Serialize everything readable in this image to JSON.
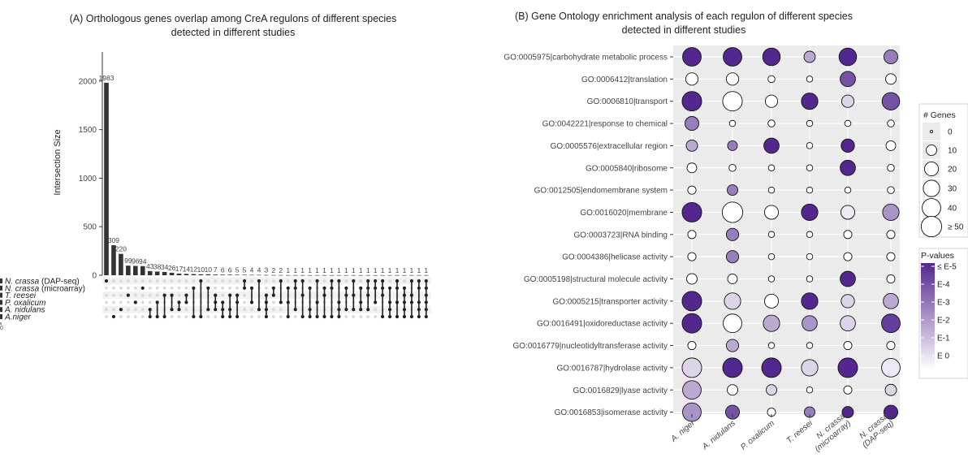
{
  "panel_a": {
    "title_line1": "(A) Orthologous genes overlap among CreA regulons of different species",
    "title_line2": "detected in different studies"
  },
  "panel_b": {
    "title_line1": "(B) Gene Ontology enrichment analysis of each regulon of different species",
    "title_line2": "detected in different studies"
  },
  "chart_data": [
    {
      "type": "bar",
      "chart": "upset",
      "ylabel": "Intersection Size",
      "ylim": [
        0,
        2300
      ],
      "yticks": [
        0,
        500,
        1000,
        1500,
        2000
      ],
      "values": [
        1983,
        309,
        220,
        99,
        96,
        94,
        43,
        38,
        34,
        26,
        17,
        14,
        12,
        10,
        10,
        7,
        6,
        6,
        5,
        5,
        4,
        4,
        3,
        2,
        2,
        1,
        1,
        1,
        1,
        1,
        1,
        1,
        1,
        1,
        1,
        1,
        1,
        1,
        1,
        1,
        1,
        1,
        1,
        1,
        1
      ],
      "sets": [
        {
          "name": "N. crassa",
          "suffix": " (DAP-seq)"
        },
        {
          "name": "N. crassa",
          "suffix": " (microarray)"
        },
        {
          "name": "T. reesei",
          "suffix": ""
        },
        {
          "name": "P. oxalicum",
          "suffix": ""
        },
        {
          "name": "A. nidulans",
          "suffix": ""
        },
        {
          "name": "A.niger",
          "suffix": ""
        }
      ],
      "set_size_axis_label": "0",
      "intersections": [
        [
          0
        ],
        [
          5
        ],
        [
          4
        ],
        [
          2
        ],
        [
          3
        ],
        [
          1
        ],
        [
          4,
          5
        ],
        [
          3,
          5
        ],
        [
          2,
          5
        ],
        [
          2,
          4
        ],
        [
          3,
          4
        ],
        [
          2,
          3
        ],
        [
          1,
          5
        ],
        [
          0,
          5
        ],
        [
          1,
          4
        ],
        [
          2,
          3,
          4
        ],
        [
          3,
          4,
          5
        ],
        [
          2,
          4,
          5
        ],
        [
          2,
          3,
          5
        ],
        [
          0,
          1
        ],
        [
          1,
          3
        ],
        [
          0,
          4
        ],
        [
          2,
          3,
          4,
          5
        ],
        [
          1,
          2
        ],
        [
          0,
          3
        ],
        [
          1,
          3,
          5
        ],
        [
          0,
          1,
          4
        ],
        [
          0,
          2,
          5
        ],
        [
          1,
          4,
          5
        ],
        [
          0,
          3,
          5
        ],
        [
          1,
          2,
          5
        ],
        [
          0,
          1,
          5
        ],
        [
          0,
          3,
          4,
          5
        ],
        [
          1,
          2,
          4
        ],
        [
          0,
          2,
          4
        ],
        [
          1,
          3,
          4
        ],
        [
          0,
          1,
          2,
          4
        ],
        [
          0,
          1,
          3
        ],
        [
          0,
          1,
          2,
          5
        ],
        [
          1,
          3,
          4,
          5
        ],
        [
          0,
          1,
          3,
          5
        ],
        [
          1,
          2,
          3,
          4,
          5
        ],
        [
          0,
          2,
          3,
          5
        ],
        [
          0,
          1,
          3,
          4,
          5
        ],
        [
          0,
          1,
          2,
          3,
          4,
          5
        ]
      ]
    },
    {
      "type": "scatter",
      "chart": "dotplot",
      "x_categories": [
        "A. niger",
        "A. nidulans",
        "P. oxalicum",
        "T. reesei",
        "N. crassa\n(microarray)",
        "N. crassa\n(DAP-seq)"
      ],
      "y_categories": [
        "GO:0005975|carbohydrate metabolic process",
        "GO:0006412|translation",
        "GO:0006810|transport",
        "GO:0042221|response to chemical",
        "GO:0005576|extracellular region",
        "GO:0005840|ribosome",
        "GO:0012505|endomembrane system",
        "GO:0016020|membrane",
        "GO:0003723|RNA binding",
        "GO:0004386|helicase activity",
        "GO:0005198|structural molecule activity",
        "GO:0005215|transporter activity",
        "GO:0016491|oxidoreductase activity",
        "GO:0016779|nucleotidyltransferase activity",
        "GO:0016787|hydrolase activity",
        "GO:0016829|lyase activity",
        "GO:0016853|isomerase activity"
      ],
      "gene_counts": [
        [
          40,
          40,
          35,
          12,
          35,
          20
        ],
        [
          15,
          15,
          3,
          2,
          25,
          10
        ],
        [
          45,
          45,
          15,
          30,
          15,
          35
        ],
        [
          20,
          2,
          3,
          2,
          2,
          3
        ],
        [
          12,
          8,
          25,
          2,
          18,
          8
        ],
        [
          8,
          3,
          2,
          2,
          25,
          3
        ],
        [
          5,
          10,
          2,
          2,
          2,
          3
        ],
        [
          45,
          50,
          20,
          30,
          20,
          30
        ],
        [
          5,
          15,
          2,
          2,
          5,
          5
        ],
        [
          5,
          15,
          2,
          2,
          5,
          5
        ],
        [
          10,
          8,
          2,
          2,
          25,
          5
        ],
        [
          45,
          30,
          20,
          30,
          18,
          25
        ],
        [
          45,
          40,
          30,
          25,
          25,
          40
        ],
        [
          5,
          15,
          2,
          2,
          5,
          5
        ],
        [
          45,
          45,
          45,
          30,
          45,
          40
        ],
        [
          40,
          10,
          10,
          2,
          5,
          12
        ],
        [
          40,
          20,
          5,
          10,
          12,
          20
        ]
      ],
      "neg_log10_p": [
        [
          5,
          5,
          5,
          2,
          5,
          3
        ],
        [
          0,
          0,
          0,
          0,
          4,
          0
        ],
        [
          5,
          0,
          0,
          5,
          1,
          4
        ],
        [
          3,
          0,
          0,
          0,
          0,
          0
        ],
        [
          2,
          3,
          5,
          0,
          5,
          0
        ],
        [
          0,
          0,
          0,
          0,
          5,
          0
        ],
        [
          0,
          3,
          0,
          0,
          0,
          0
        ],
        [
          5,
          0,
          0,
          5,
          0.5,
          2.5
        ],
        [
          0,
          3,
          0,
          0,
          0,
          0
        ],
        [
          0,
          3,
          0,
          0,
          0,
          0
        ],
        [
          0,
          0,
          0,
          0,
          5,
          0
        ],
        [
          5,
          1,
          0,
          5,
          1,
          2
        ],
        [
          5,
          0,
          2,
          2.5,
          1,
          4.5
        ],
        [
          0,
          2,
          0,
          0,
          0,
          0
        ],
        [
          1,
          5,
          5,
          1,
          5,
          0.5
        ],
        [
          2,
          0,
          1,
          0,
          0,
          1
        ],
        [
          2.5,
          4,
          0,
          3,
          5,
          5
        ]
      ],
      "size_legend": {
        "title": "# Genes",
        "labels": [
          "0",
          "10",
          "20",
          "30",
          "40",
          "≥ 50"
        ],
        "values": [
          0,
          10,
          20,
          30,
          40,
          50
        ]
      },
      "color_legend": {
        "title": "P-values",
        "labels": [
          "≤ E-5",
          "E-4",
          "E-3",
          "E-2",
          "E-1",
          "E 0"
        ]
      },
      "colors": {
        "low": "#ffffff",
        "high": "#54278f",
        "panel_bg": "#ebebeb"
      }
    }
  ]
}
